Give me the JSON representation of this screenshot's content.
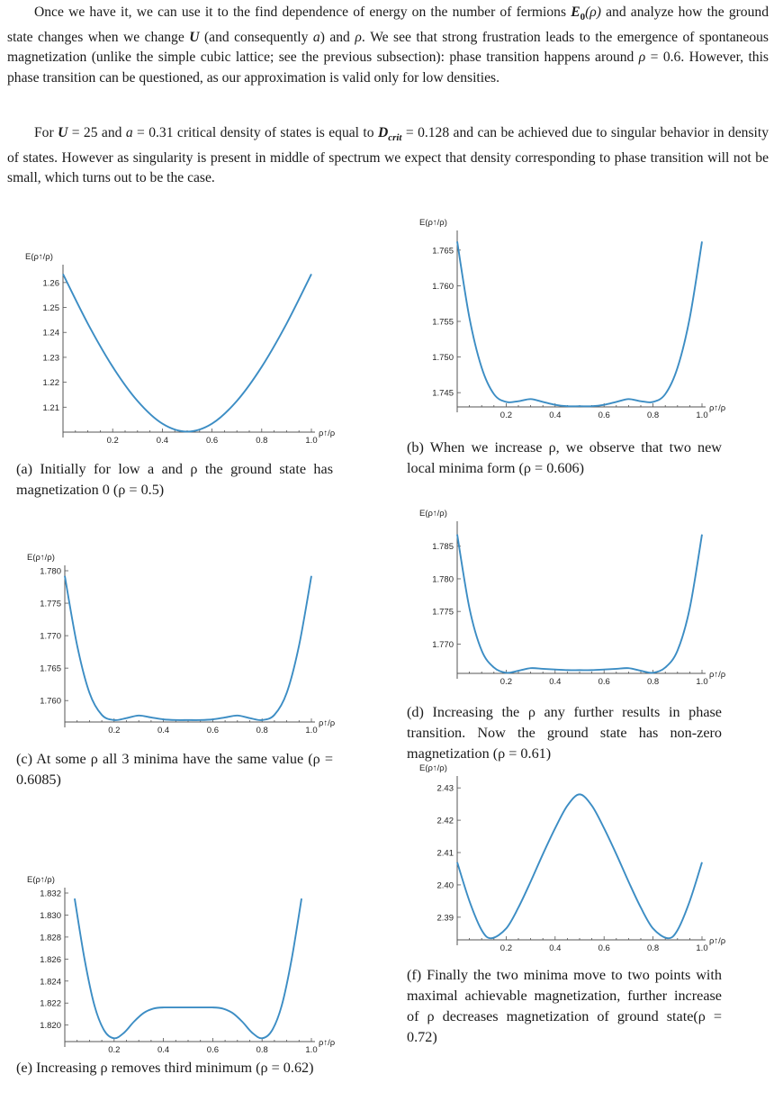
{
  "text": {
    "p1": {
      "s1": "Once we have it, we can use it to the find dependence of energy on the number of fermions ",
      "E0": "E",
      "E0_sub": "0",
      "E0_arg": "(ρ)",
      "s2": " and analyze how the ground state changes when we change ",
      "U": "U",
      "s3": " (and consequently ",
      "a": "a",
      "s4": ") and ",
      "rho": "ρ",
      "s5": ". We see that strong frustration leads to the emergence of spontaneous magnetization (unlike the simple cubic lattice; see the previous subsection): phase transition happens around ",
      "rho2": "ρ",
      "s6": " = 0.6. However, this phase transition can be questioned, as our approximation is valid only for low densities."
    },
    "p2": {
      "s1": "For ",
      "U": "U",
      "s2": " = 25 and ",
      "a": "a",
      "s3": " = 0.31 critical density of states is equal to ",
      "D": "D",
      "D_sub": "crit",
      "s4": " = 0.128 and can be achieved due to singular behavior in density of states. However as singularity is present in middle of spectrum we expect that density corresponding to phase transition will not be small, which turns out to be the case."
    }
  },
  "figures": [
    {
      "id": "a",
      "caption": "(a) Initially for low a and ρ the ground state has magnetization 0 (ρ = 0.5)",
      "chart_data": {
        "type": "line",
        "ylabel": "E(ρ↑/ρ)",
        "xlabel": "ρ↑/ρ",
        "xlim": [
          0,
          1
        ],
        "ylim": [
          1.2,
          1.265
        ],
        "xticks": [
          "0.2",
          "0.4",
          "0.6",
          "0.8",
          "1.0"
        ],
        "yticks": [
          "1.21",
          "1.22",
          "1.23",
          "1.24",
          "1.25",
          "1.26"
        ],
        "x": [
          0,
          0.1,
          0.2,
          0.3,
          0.4,
          0.5,
          0.6,
          0.7,
          0.8,
          0.9,
          1.0
        ],
        "y": [
          1.2634,
          1.2435,
          1.2262,
          1.2125,
          1.2034,
          1.2002,
          1.2034,
          1.2125,
          1.2262,
          1.2435,
          1.2634
        ]
      }
    },
    {
      "id": "b",
      "caption": "(b) When we increase ρ, we observe that two new local minima form (ρ = 0.606)",
      "chart_data": {
        "type": "line",
        "ylabel": "E(ρ↑/ρ)",
        "xlabel": "ρ↑/ρ",
        "xlim": [
          0,
          1
        ],
        "ylim": [
          1.743,
          1.767
        ],
        "xticks": [
          "0.2",
          "0.4",
          "0.6",
          "0.8",
          "1.0"
        ],
        "yticks": [
          "1.745",
          "1.750",
          "1.755",
          "1.760",
          "1.765"
        ],
        "x": [
          0,
          0.05,
          0.1,
          0.15,
          0.2,
          0.25,
          0.3,
          0.35,
          0.4,
          0.45,
          0.5,
          0.55,
          0.6,
          0.65,
          0.7,
          0.75,
          0.8,
          0.85,
          0.9,
          0.95,
          1.0
        ],
        "y": [
          1.7662,
          1.7555,
          1.7485,
          1.7448,
          1.7437,
          1.7438,
          1.7441,
          1.7437,
          1.7433,
          1.7431,
          1.7431,
          1.7431,
          1.7433,
          1.7437,
          1.7441,
          1.7438,
          1.7437,
          1.7448,
          1.7485,
          1.7555,
          1.7662
        ]
      }
    },
    {
      "id": "c",
      "caption": "(c) At some ρ all 3 minima have the same value (ρ = 0.6085)",
      "chart_data": {
        "type": "line",
        "ylabel": "E(ρ↑/ρ)",
        "xlabel": "ρ↑/ρ",
        "xlim": [
          0,
          1
        ],
        "ylim": [
          1.7567,
          1.78
        ],
        "xticks": [
          "0.2",
          "0.4",
          "0.6",
          "0.8",
          "1.0"
        ],
        "yticks": [
          "1.760",
          "1.765",
          "1.770",
          "1.775",
          "1.780"
        ],
        "x": [
          0,
          0.05,
          0.1,
          0.15,
          0.2,
          0.25,
          0.3,
          0.35,
          0.4,
          0.45,
          0.5,
          0.55,
          0.6,
          0.65,
          0.7,
          0.75,
          0.8,
          0.85,
          0.9,
          0.95,
          1.0
        ],
        "y": [
          1.7792,
          1.7685,
          1.7612,
          1.7578,
          1.757,
          1.7573,
          1.7577,
          1.7574,
          1.7571,
          1.757,
          1.757,
          1.757,
          1.7571,
          1.7574,
          1.7577,
          1.7573,
          1.757,
          1.7578,
          1.7612,
          1.7685,
          1.7792
        ]
      }
    },
    {
      "id": "d",
      "caption": "(d) Increasing the ρ any further results in phase transition. Now the ground state has non-zero magnetization (ρ = 0.61)",
      "chart_data": {
        "type": "line",
        "ylabel": "E(ρ↑/ρ)",
        "xlabel": "ρ↑/ρ",
        "xlim": [
          0,
          1
        ],
        "ylim": [
          1.7655,
          1.788
        ],
        "xticks": [
          "0.2",
          "0.4",
          "0.6",
          "0.8",
          "1.0"
        ],
        "yticks": [
          "1.770",
          "1.775",
          "1.780",
          "1.785"
        ],
        "x": [
          0,
          0.05,
          0.1,
          0.15,
          0.2,
          0.25,
          0.3,
          0.35,
          0.4,
          0.45,
          0.5,
          0.55,
          0.6,
          0.65,
          0.7,
          0.75,
          0.8,
          0.85,
          0.9,
          0.95,
          1.0
        ],
        "y": [
          1.7868,
          1.7755,
          1.769,
          1.7664,
          1.7656,
          1.7659,
          1.7663,
          1.7662,
          1.7661,
          1.766,
          1.766,
          1.766,
          1.7661,
          1.7662,
          1.7663,
          1.7659,
          1.7656,
          1.7664,
          1.769,
          1.7755,
          1.7868
        ]
      }
    },
    {
      "id": "e",
      "caption": "(e) Increasing ρ removes third minimum (ρ = 0.62)",
      "chart_data": {
        "type": "line",
        "ylabel": "E(ρ↑/ρ)",
        "xlabel": "ρ↑/ρ",
        "xlim": [
          0,
          1
        ],
        "ylim": [
          1.8185,
          1.832
        ],
        "xticks": [
          "0.2",
          "0.4",
          "0.6",
          "0.8",
          "1.0"
        ],
        "yticks": [
          "1.820",
          "1.822",
          "1.824",
          "1.826",
          "1.828",
          "1.830",
          "1.832"
        ],
        "x": [
          0.04,
          0.08,
          0.12,
          0.16,
          0.2,
          0.24,
          0.28,
          0.32,
          0.36,
          0.4,
          0.5,
          0.6,
          0.64,
          0.68,
          0.72,
          0.76,
          0.8,
          0.84,
          0.88,
          0.92,
          0.96
        ],
        "y": [
          1.8315,
          1.826,
          1.8218,
          1.8195,
          1.8188,
          1.8193,
          1.8203,
          1.8211,
          1.8215,
          1.8216,
          1.8216,
          1.8216,
          1.8215,
          1.8211,
          1.8203,
          1.8193,
          1.8188,
          1.8195,
          1.8218,
          1.826,
          1.8315
        ]
      }
    },
    {
      "id": "f",
      "caption": "(f) Finally the two minima move to two points with maximal achievable magnetization, further increase of ρ decreases magnetization of ground state(ρ = 0.72)",
      "chart_data": {
        "type": "line",
        "ylabel": "E(ρ↑/ρ)",
        "xlabel": "ρ↑/ρ",
        "xlim": [
          0,
          1
        ],
        "ylim": [
          2.383,
          2.432
        ],
        "xticks": [
          "0.2",
          "0.4",
          "0.6",
          "0.8",
          "1.0"
        ],
        "yticks": [
          "2.39",
          "2.40",
          "2.41",
          "2.42",
          "2.43"
        ],
        "x": [
          0,
          0.05,
          0.1,
          0.14,
          0.2,
          0.25,
          0.3,
          0.35,
          0.4,
          0.45,
          0.5,
          0.55,
          0.6,
          0.65,
          0.7,
          0.75,
          0.8,
          0.86,
          0.9,
          0.95,
          1.0
        ],
        "y": [
          2.407,
          2.395,
          2.386,
          2.3835,
          2.3865,
          2.393,
          2.401,
          2.4095,
          2.4175,
          2.4245,
          2.428,
          2.4245,
          2.4175,
          2.4095,
          2.401,
          2.393,
          2.3865,
          2.3835,
          2.386,
          2.395,
          2.407
        ]
      }
    }
  ]
}
